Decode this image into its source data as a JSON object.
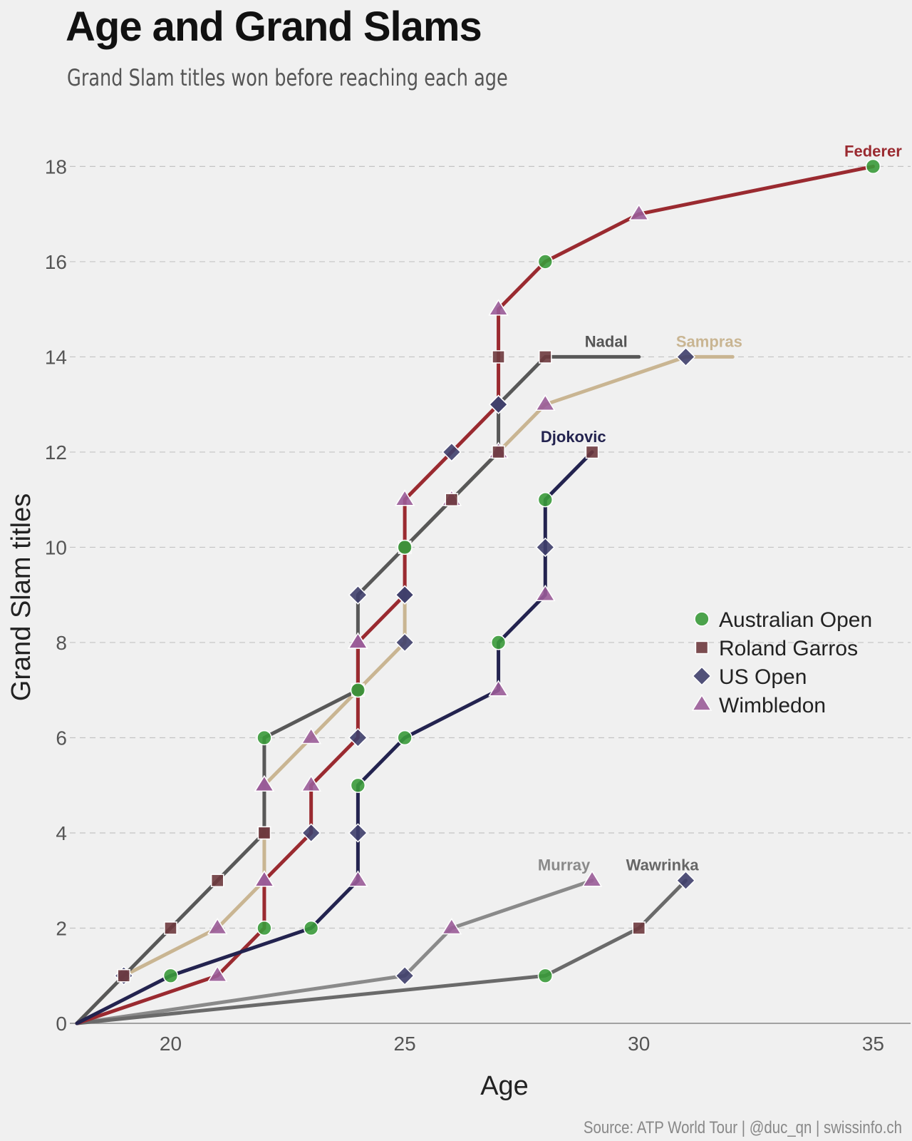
{
  "header": {
    "title": "Age and Grand Slams",
    "subtitle": "Grand Slam titles won before reaching each age"
  },
  "footer": {
    "source": "Source: ATP World Tour | @duc_qn | swissinfo.ch"
  },
  "chart_data": {
    "type": "line",
    "title": "Age and Grand Slams",
    "subtitle": "Grand Slam titles won before reaching each age",
    "xlabel": "Age",
    "ylabel": "Grand Slam titles",
    "xlim": [
      18,
      35.8
    ],
    "ylim": [
      0,
      18.8
    ],
    "xticks": [
      20,
      25,
      30,
      35
    ],
    "yticks": [
      0,
      2,
      4,
      6,
      8,
      10,
      12,
      14,
      16,
      18
    ],
    "grid": "horizontal-dashed",
    "legend_position": "right-middle",
    "tournaments": [
      {
        "key": "AO",
        "name": "Australian Open",
        "marker": "circle",
        "color": "#3a9a3a"
      },
      {
        "key": "RG",
        "name": "Roland Garros",
        "marker": "square",
        "color": "#6e3a3e"
      },
      {
        "key": "US",
        "name": "US Open",
        "marker": "diamond",
        "color": "#3f3f6b"
      },
      {
        "key": "W",
        "name": "Wimbledon",
        "marker": "triangle",
        "color": "#9a5c98"
      }
    ],
    "series": [
      {
        "name": "Murray",
        "color": "#8a8a8a",
        "points": [
          [
            18,
            0,
            null
          ],
          [
            25,
            1,
            "US"
          ],
          [
            26,
            2,
            "W"
          ],
          [
            29,
            3,
            "W"
          ]
        ]
      },
      {
        "name": "Wawrinka",
        "color": "#6a6a6a",
        "points": [
          [
            18,
            0,
            null
          ],
          [
            28,
            1,
            "AO"
          ],
          [
            30,
            2,
            "RG"
          ],
          [
            31,
            3,
            "US"
          ]
        ]
      },
      {
        "name": "Sampras",
        "color": "#c9b592",
        "points": [
          [
            18,
            0,
            null
          ],
          [
            19,
            1,
            "US"
          ],
          [
            21,
            2,
            "W"
          ],
          [
            22,
            3,
            "W"
          ],
          [
            22,
            4,
            "RG"
          ],
          [
            22,
            5,
            "W"
          ],
          [
            23,
            6,
            "W"
          ],
          [
            24,
            7,
            "RG"
          ],
          [
            25,
            8,
            "US"
          ],
          [
            25,
            9,
            "US"
          ],
          [
            25,
            10,
            "RG"
          ],
          [
            26,
            11,
            "W"
          ],
          [
            27,
            12,
            "W"
          ],
          [
            28,
            13,
            "W"
          ],
          [
            31,
            14,
            "US"
          ],
          [
            32,
            14,
            null
          ]
        ]
      },
      {
        "name": "Nadal",
        "color": "#585858",
        "points": [
          [
            18,
            0,
            null
          ],
          [
            19,
            1,
            "RG"
          ],
          [
            20,
            2,
            "RG"
          ],
          [
            21,
            3,
            "RG"
          ],
          [
            22,
            4,
            "RG"
          ],
          [
            22,
            5,
            "W"
          ],
          [
            22,
            6,
            "AO"
          ],
          [
            24,
            7,
            "RG"
          ],
          [
            24,
            8,
            "W"
          ],
          [
            24,
            9,
            "US"
          ],
          [
            25,
            10,
            "RG"
          ],
          [
            26,
            11,
            "RG"
          ],
          [
            27,
            12,
            "RG"
          ],
          [
            27,
            13,
            "US"
          ],
          [
            28,
            14,
            "RG"
          ],
          [
            30,
            14,
            null
          ]
        ]
      },
      {
        "name": "Federer",
        "color": "#9a2a30",
        "points": [
          [
            18,
            0,
            null
          ],
          [
            21,
            1,
            "W"
          ],
          [
            22,
            2,
            "AO"
          ],
          [
            22,
            3,
            "W"
          ],
          [
            23,
            4,
            "US"
          ],
          [
            23,
            5,
            "W"
          ],
          [
            24,
            6,
            "US"
          ],
          [
            24,
            7,
            "AO"
          ],
          [
            24,
            8,
            "W"
          ],
          [
            25,
            9,
            "US"
          ],
          [
            25,
            10,
            "AO"
          ],
          [
            25,
            11,
            "W"
          ],
          [
            26,
            12,
            "US"
          ],
          [
            27,
            13,
            "US"
          ],
          [
            27,
            14,
            "RG"
          ],
          [
            27,
            15,
            "W"
          ],
          [
            28,
            16,
            "AO"
          ],
          [
            30,
            17,
            "W"
          ],
          [
            35,
            18,
            "AO"
          ]
        ]
      },
      {
        "name": "Djokovic",
        "color": "#23234f",
        "points": [
          [
            18,
            0,
            null
          ],
          [
            20,
            1,
            "AO"
          ],
          [
            23,
            2,
            "AO"
          ],
          [
            24,
            3,
            "W"
          ],
          [
            24,
            4,
            "US"
          ],
          [
            24,
            5,
            "AO"
          ],
          [
            25,
            6,
            "AO"
          ],
          [
            27,
            7,
            "W"
          ],
          [
            27,
            8,
            "AO"
          ],
          [
            28,
            9,
            "W"
          ],
          [
            28,
            10,
            "US"
          ],
          [
            28,
            11,
            "AO"
          ],
          [
            29,
            12,
            "RG"
          ]
        ]
      }
    ],
    "player_labels": [
      {
        "name": "Federer",
        "x": 35,
        "y": 18,
        "color": "#9a2a30"
      },
      {
        "name": "Nadal",
        "x": 29.3,
        "y": 14,
        "color": "#555555"
      },
      {
        "name": "Sampras",
        "x": 31.5,
        "y": 14,
        "color": "#c9b592"
      },
      {
        "name": "Djokovic",
        "x": 28.6,
        "y": 12,
        "color": "#23234f"
      },
      {
        "name": "Murray",
        "x": 28.4,
        "y": 3,
        "color": "#8a8a8a"
      },
      {
        "name": "Wawrinka",
        "x": 30.5,
        "y": 3,
        "color": "#666666"
      }
    ]
  }
}
